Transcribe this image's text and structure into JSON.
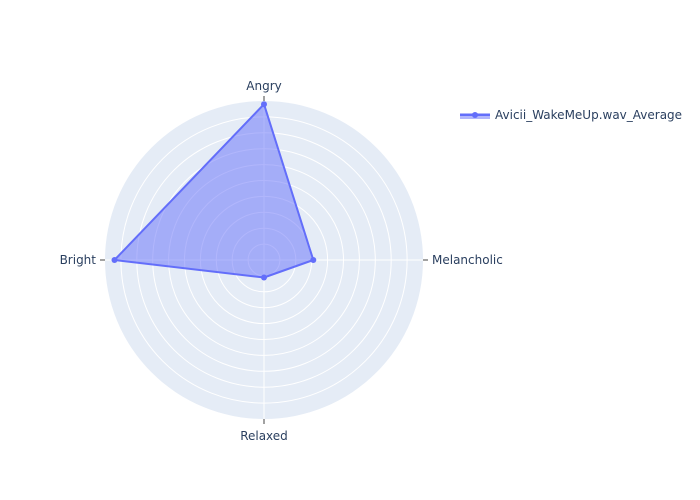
{
  "chart_data": {
    "type": "radar",
    "title": "",
    "axes": [
      "Angry",
      "Melancholic",
      "Relaxed",
      "Bright"
    ],
    "radial_range": [
      0,
      1
    ],
    "series": [
      {
        "name": "Avicii_WakeMeUp.wav_Average",
        "values": [
          0.98,
          0.31,
          0.11,
          0.94
        ]
      }
    ],
    "grid": true,
    "legend_position": "top-right"
  },
  "colors": {
    "polar_bg": "#e5ecf6",
    "grid": "#ffffff",
    "series": "#636efa",
    "text": "#2a3f5f"
  }
}
